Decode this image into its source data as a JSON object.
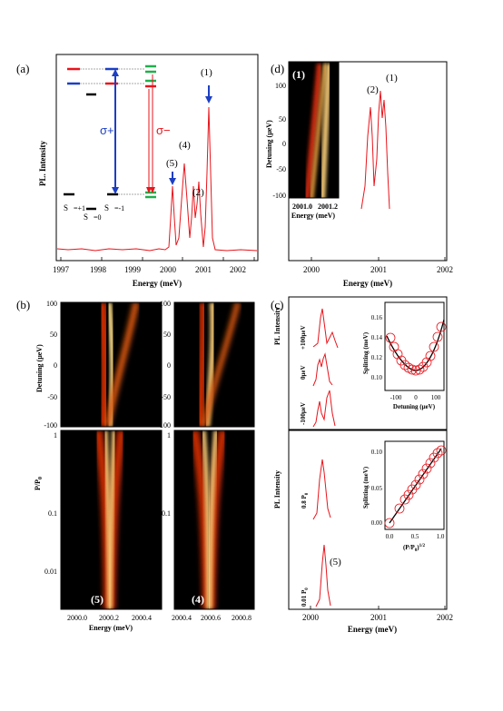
{
  "figure": {
    "panel_a": {
      "label": "(a)",
      "ylabel": "PL. Intensity",
      "xlabel": "Energy (meV)",
      "xticks": [
        "1997",
        "1998",
        "1999",
        "2000",
        "2001",
        "2002"
      ],
      "peak_labels": [
        "(1)",
        "(4)",
        "(5)",
        "(2)"
      ],
      "sigma_plus": "σ+",
      "sigma_minus": "σ−",
      "state_labels": [
        "S",
        "=+1",
        "S",
        "=0",
        "S",
        "=-1"
      ]
    },
    "panel_d": {
      "label": "(d)",
      "ylabel": "Detuning (μeV)",
      "xlabel": "Energy (meV)",
      "xticks": [
        "2000",
        "2001",
        "2002"
      ],
      "inset_label": "(1)",
      "inset_xlabel": "Energy (meV)",
      "inset_xticks": [
        "2001.0",
        "2001.2"
      ],
      "inset_yticks": [
        "100",
        "50",
        "0",
        "-50",
        "-100"
      ],
      "peak_labels": [
        "(2)",
        "(1)"
      ]
    },
    "panel_b": {
      "label": "(b)",
      "ylabel_top": "Detuning (μeV)",
      "ylabel_bottom": "P/P",
      "ylabel_bottom_sub": "0",
      "yticks_top": [
        "100",
        "50",
        "0",
        "-50",
        "-100"
      ],
      "yticks_bottom": [
        "1",
        "0.1",
        "0.01"
      ],
      "xlabel": "Energy (meV)",
      "xticks_left": [
        "2000.0",
        "2000.2",
        "2000.4"
      ],
      "xticks_right": [
        "2000.4",
        "2000.6",
        "2000.8"
      ],
      "map_labels": [
        "(5)",
        "(4)"
      ]
    },
    "panel_c": {
      "label": "(c)",
      "ylabel_top": "PL Intensity",
      "ylabel_bottom": "PL Intensity",
      "spectra_top": [
        "+100μeV",
        "0μeV",
        "-100μeV"
      ],
      "spectra_bottom_top": "0.8 P",
      "spectra_bottom_bottom": "0.01 P",
      "sub0": "0",
      "peak_label": "(5)",
      "xlabel": "Energy (meV)",
      "xticks": [
        "2000",
        "2001",
        "2002"
      ],
      "inset1_ylabel": "Splitting (meV)",
      "inset1_xlabel": "Detuning (μeV)",
      "inset1_yticks": [
        "0.16",
        "0.14",
        "0.12",
        "0.10"
      ],
      "inset1_xticks": [
        "-100",
        "0",
        "100"
      ],
      "inset2_ylabel": "Splitting (meV)",
      "inset2_xlabel": "(P/P",
      "inset2_xlabel_tail": ")",
      "inset2_xlabel_sup": "1/2",
      "inset2_yticks": [
        "0.10",
        "0.05",
        "0.00"
      ],
      "inset2_xticks": [
        "0.0",
        "0.5",
        "1.0"
      ]
    }
  },
  "colors": {
    "trace": "#e8141b",
    "blue": "#1c3fc4",
    "green": "#1fb04a"
  }
}
